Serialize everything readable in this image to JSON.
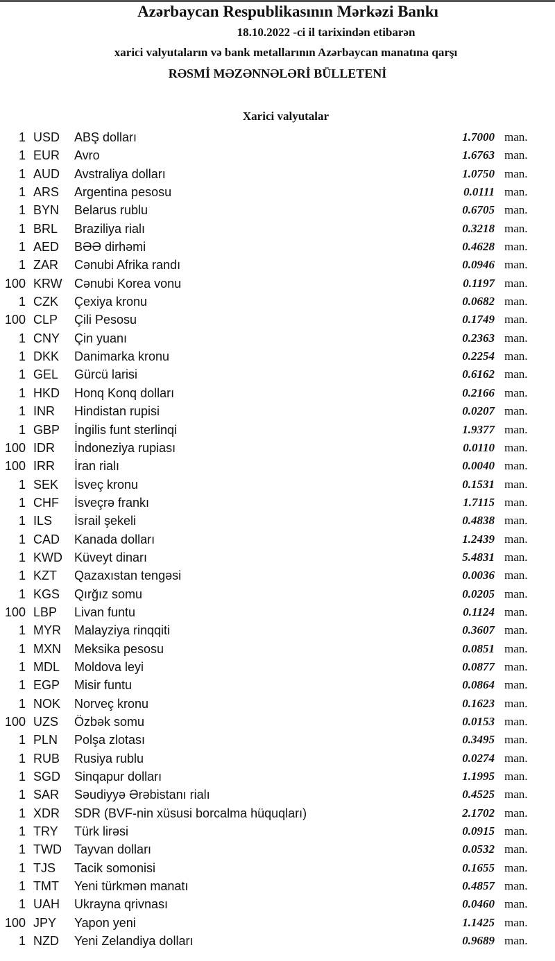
{
  "header": {
    "title": "Azərbaycan Respublikasının Mərkəzi Bankı",
    "date_line": "18.10.2022 -ci il tarixindən etibarən",
    "subtitle": "xarici valyutaların və bank metallarının Azərbaycan manatına qarşı",
    "bulletin": "RƏSMİ MƏZƏNNƏLƏRİ BÜLLETENİ",
    "section": "Xarici valyutalar"
  },
  "unit": "man.",
  "rates": [
    {
      "qty": "1",
      "code": "USD",
      "name": "ABŞ dolları",
      "value": "1.7000"
    },
    {
      "qty": "1",
      "code": "EUR",
      "name": "Avro",
      "value": "1.6763"
    },
    {
      "qty": "1",
      "code": "AUD",
      "name": "Avstraliya dolları",
      "value": "1.0750"
    },
    {
      "qty": "1",
      "code": "ARS",
      "name": "Argentina pesosu",
      "value": "0.0111"
    },
    {
      "qty": "1",
      "code": "BYN",
      "name": "Belarus rublu",
      "value": "0.6705"
    },
    {
      "qty": "1",
      "code": "BRL",
      "name": "Braziliya rialı",
      "value": "0.3218"
    },
    {
      "qty": "1",
      "code": "AED",
      "name": "BƏƏ dirhəmi",
      "value": "0.4628"
    },
    {
      "qty": "1",
      "code": "ZAR",
      "name": "Cənubi Afrika randı",
      "value": "0.0946"
    },
    {
      "qty": "100",
      "code": "KRW",
      "name": "Cənubi Korea vonu",
      "value": "0.1197"
    },
    {
      "qty": "1",
      "code": "CZK",
      "name": "Çexiya kronu",
      "value": "0.0682"
    },
    {
      "qty": "100",
      "code": "CLP",
      "name": "Çili Pesosu",
      "value": "0.1749"
    },
    {
      "qty": "1",
      "code": "CNY",
      "name": "Çin yuanı",
      "value": "0.2363"
    },
    {
      "qty": "1",
      "code": "DKK",
      "name": "Danimarka kronu",
      "value": "0.2254"
    },
    {
      "qty": "1",
      "code": "GEL",
      "name": "Gürcü larisi",
      "value": "0.6162"
    },
    {
      "qty": "1",
      "code": "HKD",
      "name": "Honq Konq dolları",
      "value": "0.2166"
    },
    {
      "qty": "1",
      "code": "INR",
      "name": "Hindistan rupisi",
      "value": "0.0207"
    },
    {
      "qty": "1",
      "code": "GBP",
      "name": "İngilis funt sterlinqi",
      "value": "1.9377"
    },
    {
      "qty": "100",
      "code": "IDR",
      "name": "İndoneziya rupiası",
      "value": "0.0110"
    },
    {
      "qty": "100",
      "code": "IRR",
      "name": "İran rialı",
      "value": "0.0040"
    },
    {
      "qty": "1",
      "code": "SEK",
      "name": "İsveç kronu",
      "value": "0.1531"
    },
    {
      "qty": "1",
      "code": "CHF",
      "name": "İsveçrə frankı",
      "value": "1.7115"
    },
    {
      "qty": "1",
      "code": "ILS",
      "name": "İsrail şekeli",
      "value": "0.4838"
    },
    {
      "qty": "1",
      "code": "CAD",
      "name": "Kanada dolları",
      "value": "1.2439"
    },
    {
      "qty": "1",
      "code": "KWD",
      "name": "Küveyt dinarı",
      "value": "5.4831"
    },
    {
      "qty": "1",
      "code": "KZT",
      "name": "Qazaxıstan tengəsi",
      "value": "0.0036"
    },
    {
      "qty": "1",
      "code": "KGS",
      "name": "Qırğız somu",
      "value": "0.0205"
    },
    {
      "qty": "100",
      "code": "LBP",
      "name": "Livan funtu",
      "value": "0.1124"
    },
    {
      "qty": "1",
      "code": "MYR",
      "name": "Malayziya rinqqiti",
      "value": "0.3607"
    },
    {
      "qty": "1",
      "code": "MXN",
      "name": "Meksika pesosu",
      "value": "0.0851"
    },
    {
      "qty": "1",
      "code": "MDL",
      "name": "Moldova leyi",
      "value": "0.0877"
    },
    {
      "qty": "1",
      "code": "EGP",
      "name": "Misir funtu",
      "value": "0.0864"
    },
    {
      "qty": "1",
      "code": "NOK",
      "name": "Norveç kronu",
      "value": "0.1623"
    },
    {
      "qty": "100",
      "code": "UZS",
      "name": "Özbək somu",
      "value": "0.0153"
    },
    {
      "qty": "1",
      "code": "PLN",
      "name": "Polşa zlotası",
      "value": "0.3495"
    },
    {
      "qty": "1",
      "code": "RUB",
      "name": "Rusiya rublu",
      "value": "0.0274"
    },
    {
      "qty": "1",
      "code": "SGD",
      "name": "Sinqapur dolları",
      "value": "1.1995"
    },
    {
      "qty": "1",
      "code": "SAR",
      "name": "Səudiyyə Ərəbistanı rialı",
      "value": "0.4525"
    },
    {
      "qty": "1",
      "code": "XDR",
      "name": "SDR (BVF-nin xüsusi borcalma hüquqları)",
      "value": "2.1702"
    },
    {
      "qty": "1",
      "code": "TRY",
      "name": "Türk lirəsi",
      "value": "0.0915"
    },
    {
      "qty": "1",
      "code": "TWD",
      "name": "Tayvan dolları",
      "value": "0.0532"
    },
    {
      "qty": "1",
      "code": "TJS",
      "name": "Tacik somonisi",
      "value": "0.1655"
    },
    {
      "qty": "1",
      "code": "TMT",
      "name": "Yeni türkmən manatı",
      "value": "0.4857"
    },
    {
      "qty": "1",
      "code": "UAH",
      "name": "Ukrayna qrivnası",
      "value": "0.0460"
    },
    {
      "qty": "100",
      "code": "JPY",
      "name": "Yapon yeni",
      "value": "1.1425"
    },
    {
      "qty": "1",
      "code": "NZD",
      "name": "Yeni Zelandiya dolları",
      "value": "0.9689"
    }
  ]
}
